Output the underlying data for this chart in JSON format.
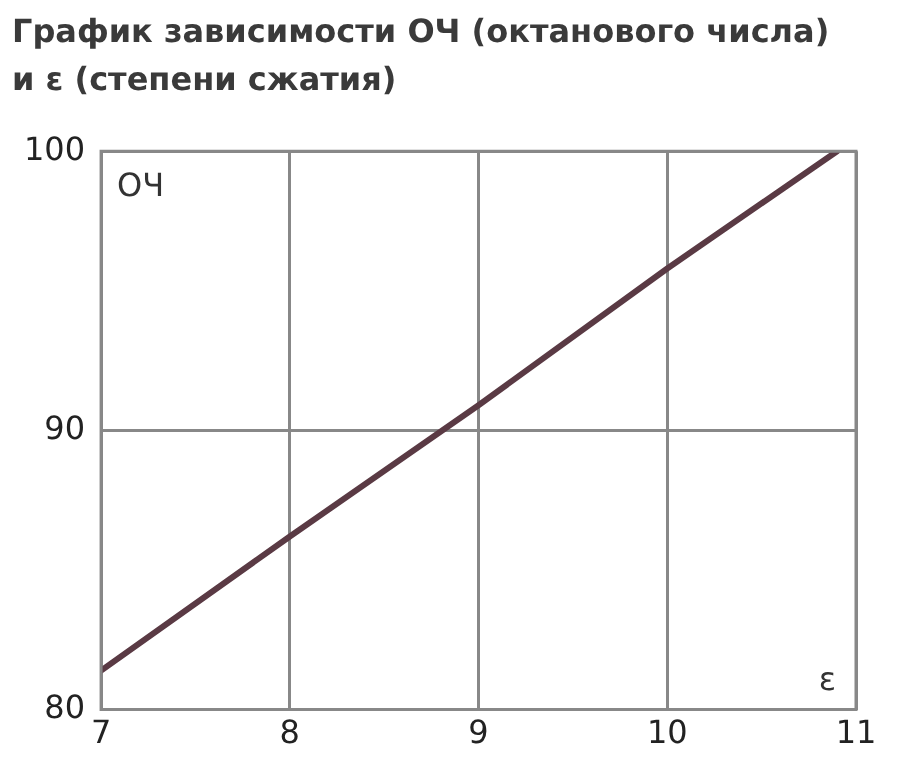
{
  "chart_data": {
    "type": "line",
    "title": "График зависимости ОЧ (октанового числа)\nи ε (степени сжатия)",
    "xlabel": "ε",
    "ylabel": "ОЧ",
    "x": [
      7,
      8,
      9,
      10,
      10.9
    ],
    "series": [
      {
        "color": "#5a3a44",
        "values": [
          81.4,
          86.2,
          90.9,
          95.8,
          100
        ]
      }
    ],
    "xlim": [
      7,
      11
    ],
    "xticks": [
      7,
      8,
      9,
      10,
      11
    ],
    "ylim": [
      80,
      100
    ],
    "yticks": [
      80,
      90,
      100
    ],
    "grid": true,
    "legend": false,
    "marker": "none",
    "line_style": "solid"
  }
}
